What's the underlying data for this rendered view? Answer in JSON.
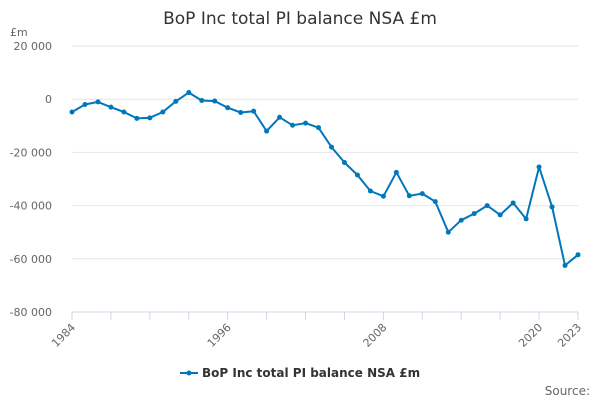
{
  "chart_data": {
    "type": "line",
    "title": "BoP Inc total PI balance NSA £m",
    "y_unit_label": "£m",
    "ylim": [
      -80000,
      20000
    ],
    "y_ticks": [
      20000,
      0,
      -20000,
      -40000,
      -60000,
      -80000
    ],
    "y_tick_labels": [
      "20 000",
      "0",
      "-20 000",
      "-40 000",
      "-60 000",
      "-80 000"
    ],
    "x_range": [
      1984,
      2023
    ],
    "x_tick_labels": [
      {
        "year": 1984,
        "label": "1984"
      },
      {
        "year": 1996,
        "label": "1996"
      },
      {
        "year": 2008,
        "label": "2008"
      },
      {
        "year": 2020,
        "label": "2020"
      },
      {
        "year": 2023,
        "label": "2023"
      }
    ],
    "x_minor_ticks": [
      1987,
      1990,
      1993,
      1999,
      2002,
      2005,
      2011,
      2014,
      2017
    ],
    "grid": true,
    "legend_position": "bottom-center",
    "series": [
      {
        "name": "BoP Inc total PI balance NSA £m",
        "color": "#0077bb",
        "x": [
          1984,
          1985,
          1986,
          1987,
          1988,
          1989,
          1990,
          1991,
          1992,
          1993,
          1994,
          1995,
          1996,
          1997,
          1998,
          1999,
          2000,
          2001,
          2002,
          2003,
          2004,
          2005,
          2006,
          2007,
          2008,
          2009,
          2010,
          2011,
          2012,
          2013,
          2014,
          2015,
          2016,
          2017,
          2018,
          2019,
          2020,
          2021,
          2022,
          2023
        ],
        "y": [
          -4800,
          -2000,
          -1000,
          -3000,
          -4800,
          -7200,
          -7000,
          -4800,
          -800,
          2500,
          -500,
          -700,
          -3200,
          -5000,
          -4500,
          -12000,
          -6800,
          -9800,
          -9000,
          -10700,
          -18000,
          -23800,
          -28500,
          -34500,
          -36500,
          -27500,
          -36300,
          -35500,
          -38500,
          -50000,
          -45500,
          -43000,
          -40000,
          -43500,
          -39000,
          -45000,
          -25500,
          -40500,
          -62500,
          -58500
        ]
      }
    ],
    "source_label": "Source:"
  }
}
